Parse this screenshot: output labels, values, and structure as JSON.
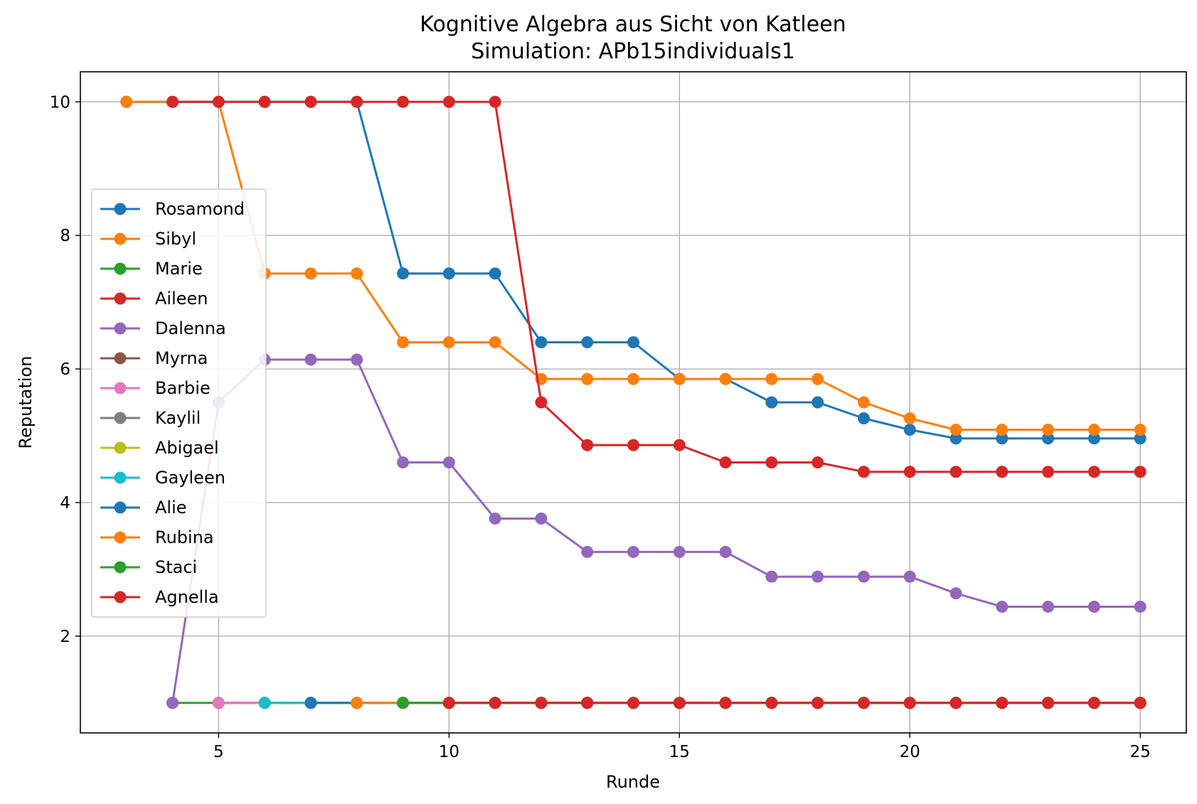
{
  "chart_data": {
    "type": "line",
    "title": "Kognitive Algebra aus Sicht von Katleen",
    "subtitle": "Simulation: APb15individuals1",
    "xlabel": "Runde",
    "ylabel": "Reputation",
    "xlim": [
      2,
      26
    ],
    "ylim": [
      0.55,
      10.45
    ],
    "xticks": [
      5,
      10,
      15,
      20,
      25
    ],
    "yticks": [
      2,
      4,
      6,
      8,
      10
    ],
    "grid": true,
    "legend_position": "center-left",
    "series": [
      {
        "name": "Rosamond",
        "color": "#1f77b4",
        "x": [
          3,
          4,
          5,
          6,
          7,
          8,
          9,
          10,
          11,
          12,
          13,
          14,
          15,
          16,
          17,
          18,
          19,
          20,
          21,
          22,
          23,
          24,
          25
        ],
        "y": [
          10,
          10,
          10,
          10,
          10,
          10,
          7.43,
          7.43,
          7.43,
          6.4,
          6.4,
          6.4,
          5.85,
          5.85,
          5.5,
          5.5,
          5.26,
          5.09,
          4.96,
          4.96,
          4.96,
          4.96,
          4.96
        ]
      },
      {
        "name": "Sibyl",
        "color": "#ff7f0e",
        "x": [
          3,
          4,
          5,
          6,
          7,
          8,
          9,
          10,
          11,
          12,
          13,
          14,
          15,
          16,
          17,
          18,
          19,
          20,
          21,
          22,
          23,
          24,
          25
        ],
        "y": [
          10,
          10,
          10,
          7.43,
          7.43,
          7.43,
          6.4,
          6.4,
          6.4,
          5.85,
          5.85,
          5.85,
          5.85,
          5.85,
          5.85,
          5.85,
          5.5,
          5.26,
          5.09,
          5.09,
          5.09,
          5.09,
          5.09
        ]
      },
      {
        "name": "Marie",
        "color": "#2ca02c",
        "x": [
          4,
          5,
          6,
          7,
          8,
          9,
          10,
          11,
          12,
          13,
          14,
          15,
          16,
          17,
          18,
          19,
          20,
          21,
          22,
          23,
          24,
          25
        ],
        "y": [
          1,
          1,
          1,
          1,
          1,
          1,
          1,
          1,
          1,
          1,
          1,
          1,
          1,
          1,
          1,
          1,
          1,
          1,
          1,
          1,
          1,
          1
        ]
      },
      {
        "name": "Aileen",
        "color": "#d62728",
        "x": [
          4,
          5,
          6,
          7,
          8,
          9,
          10,
          11,
          12,
          13,
          14,
          15,
          16,
          17,
          18,
          19,
          20,
          21,
          22,
          23,
          24,
          25
        ],
        "y": [
          10,
          10,
          10,
          10,
          10,
          10,
          10,
          10,
          5.5,
          4.86,
          4.86,
          4.86,
          4.6,
          4.6,
          4.6,
          4.46,
          4.46,
          4.46,
          4.46,
          4.46,
          4.46,
          4.46
        ]
      },
      {
        "name": "Dalenna",
        "color": "#9467bd",
        "x": [
          4,
          5,
          6,
          7,
          8,
          9,
          10,
          11,
          12,
          13,
          14,
          15,
          16,
          17,
          18,
          19,
          20,
          21,
          22,
          23,
          24,
          25
        ],
        "y": [
          1,
          5.5,
          6.14,
          6.14,
          6.14,
          4.6,
          4.6,
          3.76,
          3.76,
          3.26,
          3.26,
          3.26,
          3.26,
          2.89,
          2.89,
          2.89,
          2.89,
          2.64,
          2.44,
          2.44,
          2.44,
          2.44
        ]
      },
      {
        "name": "Myrna",
        "color": "#8c564b",
        "x": [
          5,
          6,
          7,
          8,
          9,
          10,
          11,
          12,
          13,
          14,
          15,
          16,
          17,
          18,
          19,
          20,
          21,
          22,
          23,
          24,
          25
        ],
        "y": [
          1,
          1,
          1,
          1,
          1,
          1,
          1,
          1,
          1,
          1,
          1,
          1,
          1,
          1,
          1,
          1,
          1,
          1,
          1,
          1,
          1
        ]
      },
      {
        "name": "Barbie",
        "color": "#e377c2",
        "x": [
          5,
          6,
          7,
          8,
          9,
          10,
          11,
          12,
          13,
          14,
          15,
          16,
          17,
          18,
          19,
          20,
          21,
          22,
          23,
          24,
          25
        ],
        "y": [
          1,
          1,
          1,
          1,
          1,
          1,
          1,
          1,
          1,
          1,
          1,
          1,
          1,
          1,
          1,
          1,
          1,
          1,
          1,
          1,
          1
        ]
      },
      {
        "name": "Kaylil",
        "color": "#7f7f7f",
        "x": [
          6,
          7,
          8,
          9,
          10,
          11,
          12,
          13,
          14,
          15,
          16,
          17,
          18,
          19,
          20,
          21,
          22,
          23,
          24,
          25
        ],
        "y": [
          1,
          1,
          1,
          1,
          1,
          1,
          1,
          1,
          1,
          1,
          1,
          1,
          1,
          1,
          1,
          1,
          1,
          1,
          1,
          1
        ]
      },
      {
        "name": "Abigael",
        "color": "#bcbd22",
        "x": [
          6,
          7,
          8,
          9,
          10,
          11,
          12,
          13,
          14,
          15,
          16,
          17,
          18,
          19,
          20,
          21,
          22,
          23,
          24,
          25
        ],
        "y": [
          1,
          1,
          1,
          1,
          1,
          1,
          1,
          1,
          1,
          1,
          1,
          1,
          1,
          1,
          1,
          1,
          1,
          1,
          1,
          1
        ]
      },
      {
        "name": "Gayleen",
        "color": "#17becf",
        "x": [
          6,
          7,
          8,
          9,
          10,
          11,
          12,
          13,
          14,
          15,
          16,
          17,
          18,
          19,
          20,
          21,
          22,
          23,
          24,
          25
        ],
        "y": [
          1,
          1,
          1,
          1,
          1,
          1,
          1,
          1,
          1,
          1,
          1,
          1,
          1,
          1,
          1,
          1,
          1,
          1,
          1,
          1
        ]
      },
      {
        "name": "Alie",
        "color": "#1f77b4",
        "x": [
          7,
          8,
          9,
          10,
          11,
          12,
          13,
          14,
          15,
          16,
          17,
          18,
          19,
          20,
          21,
          22,
          23,
          24,
          25
        ],
        "y": [
          1,
          1,
          1,
          1,
          1,
          1,
          1,
          1,
          1,
          1,
          1,
          1,
          1,
          1,
          1,
          1,
          1,
          1,
          1
        ]
      },
      {
        "name": "Rubina",
        "color": "#ff7f0e",
        "x": [
          8,
          9,
          10,
          11,
          12,
          13,
          14,
          15,
          16,
          17,
          18,
          19,
          20,
          21,
          22,
          23,
          24,
          25
        ],
        "y": [
          1,
          1,
          1,
          1,
          1,
          1,
          1,
          1,
          1,
          1,
          1,
          1,
          1,
          1,
          1,
          1,
          1,
          1
        ]
      },
      {
        "name": "Staci",
        "color": "#2ca02c",
        "x": [
          9,
          10,
          11,
          12,
          13,
          14,
          15,
          16,
          17,
          18,
          19,
          20,
          21,
          22,
          23,
          24,
          25
        ],
        "y": [
          1,
          1,
          1,
          1,
          1,
          1,
          1,
          1,
          1,
          1,
          1,
          1,
          1,
          1,
          1,
          1,
          1
        ]
      },
      {
        "name": "Agnella",
        "color": "#d62728",
        "x": [
          10,
          11,
          12,
          13,
          14,
          15,
          16,
          17,
          18,
          19,
          20,
          21,
          22,
          23,
          24,
          25
        ],
        "y": [
          1,
          1,
          1,
          1,
          1,
          1,
          1,
          1,
          1,
          1,
          1,
          1,
          1,
          1,
          1,
          1
        ]
      }
    ]
  }
}
